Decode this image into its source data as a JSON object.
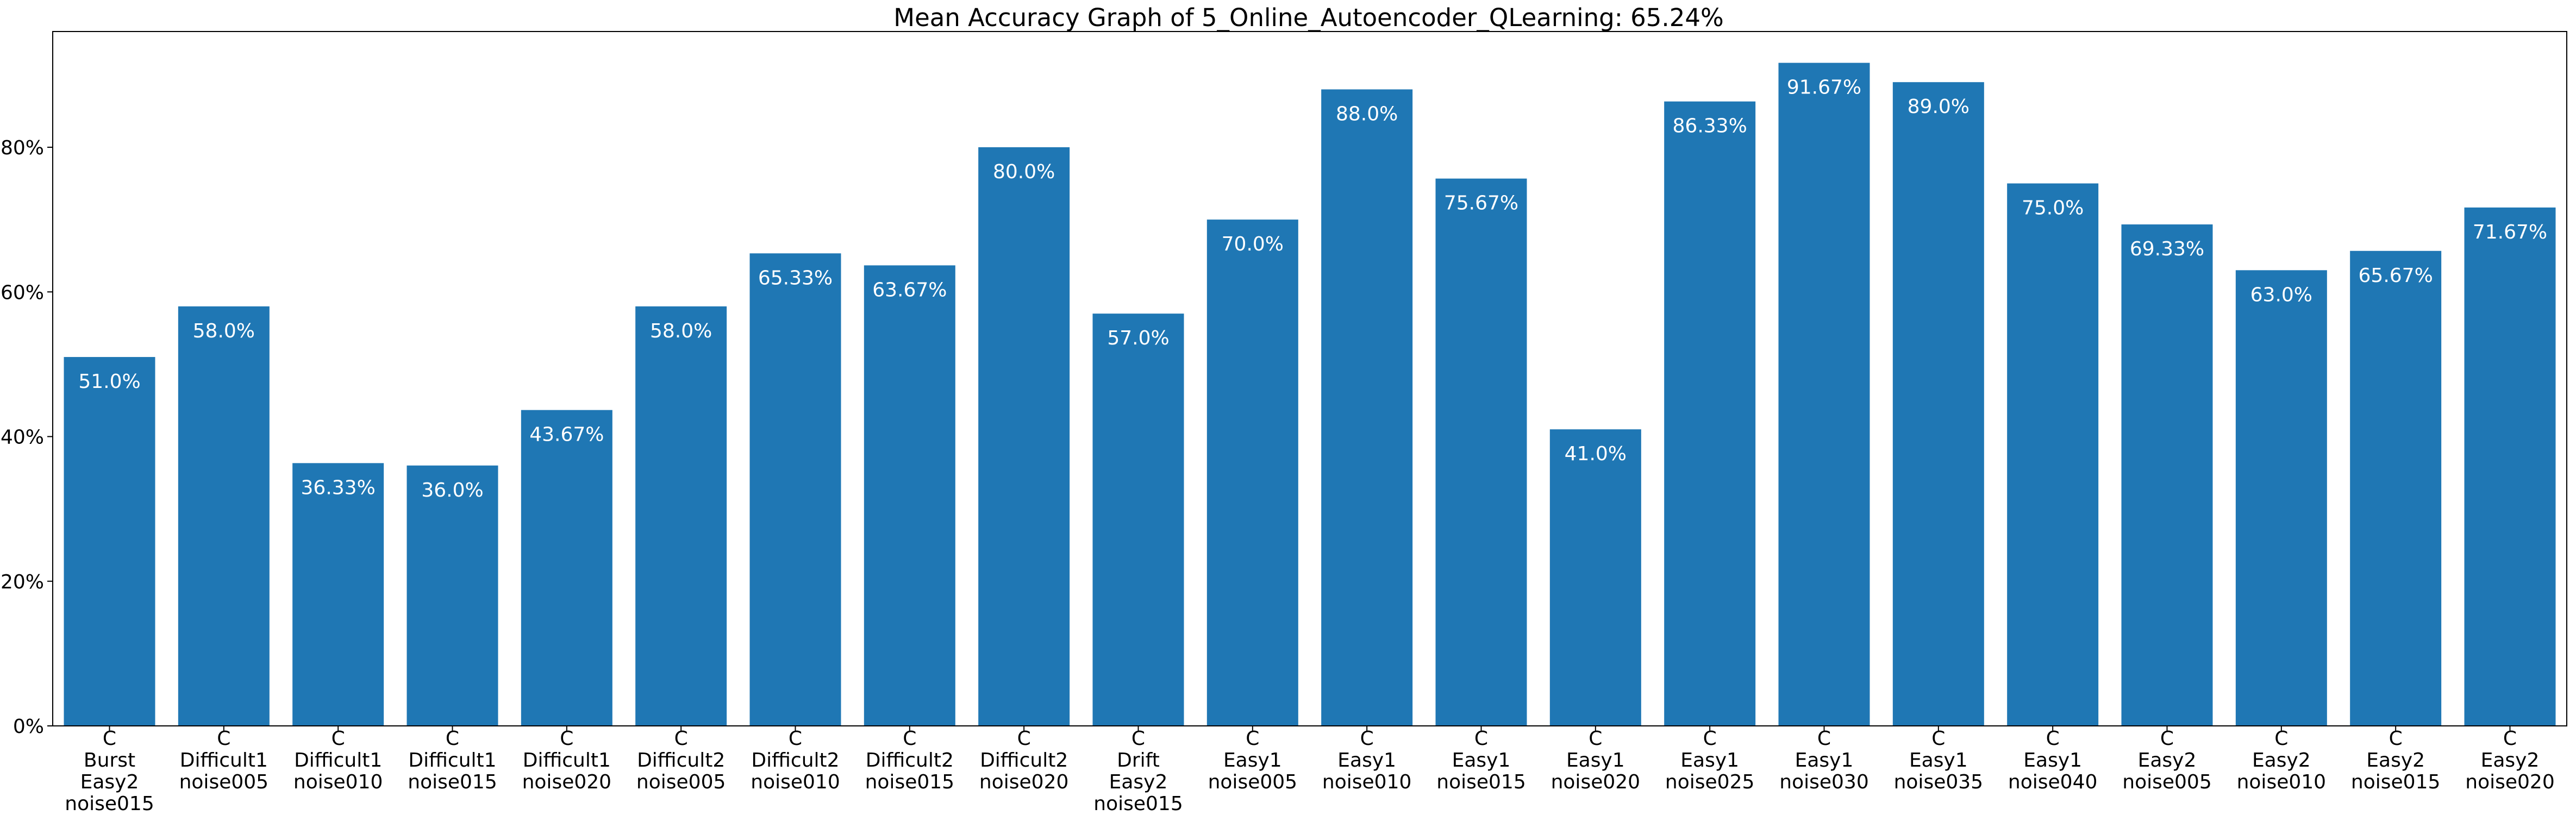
{
  "chart_data": {
    "type": "bar",
    "title": "Mean Accuracy Graph of 5_Online_Autoencoder_QLearning: 65.24%",
    "xlabel": "",
    "ylabel": "",
    "ylim": [
      0,
      96
    ],
    "yticks": [
      0,
      20,
      40,
      60,
      80
    ],
    "ytick_labels": [
      "0%",
      "20%",
      "40%",
      "60%",
      "80%"
    ],
    "grid": false,
    "bar_color": "#1f77b4",
    "categories": [
      [
        "C",
        "Burst",
        "Easy2",
        "noise015"
      ],
      [
        "C",
        "Difficult1",
        "noise005"
      ],
      [
        "C",
        "Difficult1",
        "noise010"
      ],
      [
        "C",
        "Difficult1",
        "noise015"
      ],
      [
        "C",
        "Difficult1",
        "noise020"
      ],
      [
        "C",
        "Difficult2",
        "noise005"
      ],
      [
        "C",
        "Difficult2",
        "noise010"
      ],
      [
        "C",
        "Difficult2",
        "noise015"
      ],
      [
        "C",
        "Difficult2",
        "noise020"
      ],
      [
        "C",
        "Drift",
        "Easy2",
        "noise015"
      ],
      [
        "C",
        "Easy1",
        "noise005"
      ],
      [
        "C",
        "Easy1",
        "noise010"
      ],
      [
        "C",
        "Easy1",
        "noise015"
      ],
      [
        "C",
        "Easy1",
        "noise020"
      ],
      [
        "C",
        "Easy1",
        "noise025"
      ],
      [
        "C",
        "Easy1",
        "noise030"
      ],
      [
        "C",
        "Easy1",
        "noise035"
      ],
      [
        "C",
        "Easy1",
        "noise040"
      ],
      [
        "C",
        "Easy2",
        "noise005"
      ],
      [
        "C",
        "Easy2",
        "noise010"
      ],
      [
        "C",
        "Easy2",
        "noise015"
      ],
      [
        "C",
        "Easy2",
        "noise020"
      ]
    ],
    "values": [
      51.0,
      58.0,
      36.33,
      36.0,
      43.67,
      58.0,
      65.33,
      63.67,
      80.0,
      57.0,
      70.0,
      88.0,
      75.67,
      41.0,
      86.33,
      91.67,
      89.0,
      75.0,
      69.33,
      63.0,
      65.67,
      71.67
    ],
    "value_labels": [
      "51.0%",
      "58.0%",
      "36.33%",
      "36.0%",
      "43.67%",
      "58.0%",
      "65.33%",
      "63.67%",
      "80.0%",
      "57.0%",
      "70.0%",
      "88.0%",
      "75.67%",
      "41.0%",
      "86.33%",
      "91.67%",
      "89.0%",
      "75.0%",
      "69.33%",
      "63.0%",
      "65.67%",
      "71.67%"
    ]
  }
}
